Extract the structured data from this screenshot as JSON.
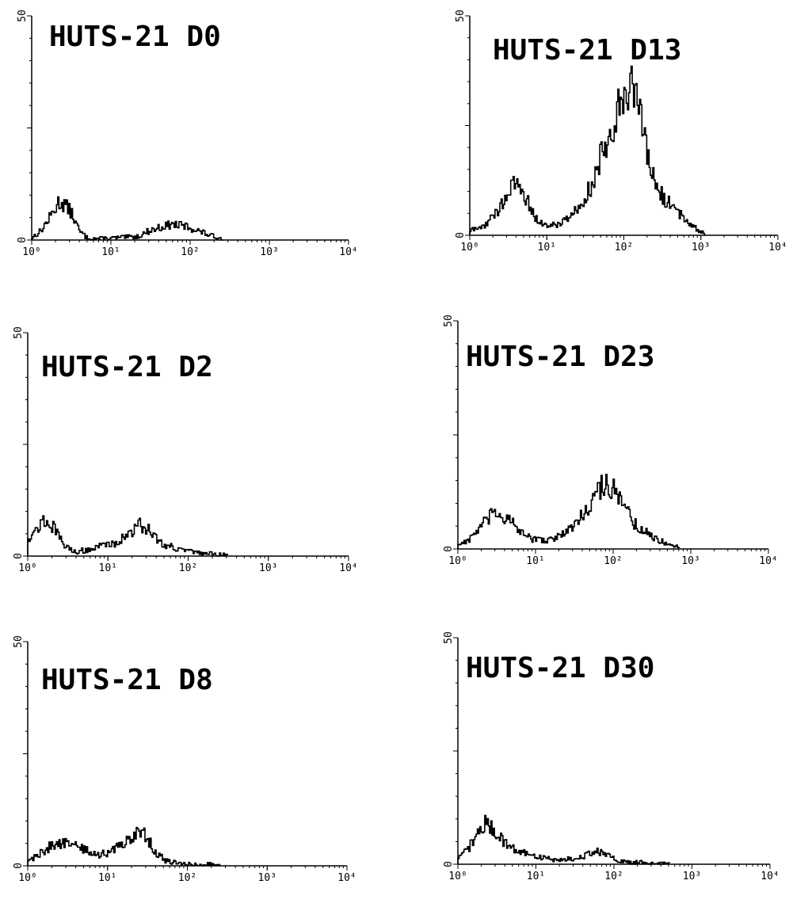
{
  "chart_data": [
    {
      "type": "line",
      "title": "HUTS-21 D0",
      "ylim": [
        0,
        50
      ],
      "y_tick_labels": [
        "0",
        "50"
      ],
      "x_scale": "log",
      "xlim": [
        1,
        10000
      ],
      "x_tick_labels": [
        "10⁰",
        "10¹",
        "10²",
        "10³",
        "10⁴"
      ],
      "grid": false,
      "peaks": [
        [
          1,
          0.5
        ],
        [
          1.3,
          2
        ],
        [
          1.7,
          5
        ],
        [
          2.2,
          8.5
        ],
        [
          2.6,
          8
        ],
        [
          3.2,
          6
        ],
        [
          4,
          2
        ],
        [
          5,
          0.5
        ],
        [
          7,
          0.3
        ],
        [
          10,
          0.4
        ],
        [
          15,
          0.6
        ],
        [
          22,
          0.8
        ],
        [
          30,
          2
        ],
        [
          45,
          3
        ],
        [
          60,
          3.5
        ],
        [
          90,
          3
        ],
        [
          130,
          2
        ],
        [
          180,
          1
        ],
        [
          250,
          0.3
        ]
      ]
    },
    {
      "type": "line",
      "title": "HUTS-21 D13",
      "ylim": [
        0,
        50
      ],
      "y_tick_labels": [
        "0",
        "50"
      ],
      "x_scale": "log",
      "xlim": [
        1,
        10000
      ],
      "x_tick_labels": [
        "10⁰",
        "10¹",
        "10²",
        "10³",
        "10⁴"
      ],
      "grid": false,
      "peaks": [
        [
          1,
          1
        ],
        [
          1.5,
          2
        ],
        [
          2.2,
          5
        ],
        [
          3,
          9
        ],
        [
          4,
          12
        ],
        [
          5,
          10
        ],
        [
          6.5,
          5
        ],
        [
          8,
          3
        ],
        [
          11,
          2
        ],
        [
          16,
          3
        ],
        [
          25,
          6
        ],
        [
          40,
          12
        ],
        [
          60,
          22
        ],
        [
          90,
          30
        ],
        [
          120,
          36
        ],
        [
          150,
          30
        ],
        [
          200,
          18
        ],
        [
          280,
          10
        ],
        [
          400,
          7
        ],
        [
          600,
          4
        ],
        [
          800,
          2
        ],
        [
          1100,
          0.5
        ]
      ]
    },
    {
      "type": "line",
      "title": "HUTS-21 D2",
      "ylim": [
        0,
        50
      ],
      "y_tick_labels": [
        "0",
        "50"
      ],
      "x_scale": "log",
      "xlim": [
        1,
        10000
      ],
      "x_tick_labels": [
        "10⁰",
        "10¹",
        "10²",
        "10³",
        "10⁴"
      ],
      "grid": false,
      "peaks": [
        [
          1,
          4
        ],
        [
          1.3,
          6
        ],
        [
          1.6,
          8
        ],
        [
          2,
          7
        ],
        [
          2.5,
          4
        ],
        [
          3,
          2
        ],
        [
          4,
          1
        ],
        [
          6,
          1.5
        ],
        [
          9,
          2.5
        ],
        [
          13,
          3
        ],
        [
          18,
          5
        ],
        [
          25,
          7
        ],
        [
          32,
          6
        ],
        [
          45,
          3
        ],
        [
          65,
          2
        ],
        [
          100,
          1
        ],
        [
          150,
          0.6
        ],
        [
          220,
          0.4
        ],
        [
          300,
          0.2
        ]
      ]
    },
    {
      "type": "line",
      "title": "HUTS-21 D23",
      "ylim": [
        0,
        50
      ],
      "y_tick_labels": [
        "0",
        "50"
      ],
      "x_scale": "log",
      "xlim": [
        1,
        10000
      ],
      "x_tick_labels": [
        "10⁰",
        "10¹",
        "10²",
        "10³",
        "10⁴"
      ],
      "grid": false,
      "peaks": [
        [
          1,
          1
        ],
        [
          1.4,
          2
        ],
        [
          2,
          5
        ],
        [
          3,
          8
        ],
        [
          4,
          7
        ],
        [
          5.5,
          5
        ],
        [
          7,
          3
        ],
        [
          10,
          2
        ],
        [
          15,
          2
        ],
        [
          22,
          3
        ],
        [
          35,
          6
        ],
        [
          55,
          11
        ],
        [
          80,
          15
        ],
        [
          100,
          13
        ],
        [
          140,
          9
        ],
        [
          200,
          5
        ],
        [
          300,
          3
        ],
        [
          450,
          1.5
        ],
        [
          700,
          0.5
        ]
      ]
    },
    {
      "type": "line",
      "title": "HUTS-21 D8",
      "ylim": [
        0,
        50
      ],
      "y_tick_labels": [
        "0",
        "50"
      ],
      "x_scale": "log",
      "xlim": [
        1,
        10000
      ],
      "x_tick_labels": [
        "10⁰",
        "10¹",
        "10²",
        "10³",
        "10⁴"
      ],
      "grid": false,
      "peaks": [
        [
          1,
          1
        ],
        [
          1.5,
          3
        ],
        [
          2.2,
          5
        ],
        [
          3,
          5
        ],
        [
          4,
          4.5
        ],
        [
          6,
          3
        ],
        [
          8,
          2.5
        ],
        [
          11,
          3
        ],
        [
          15,
          5
        ],
        [
          20,
          6
        ],
        [
          26,
          8
        ],
        [
          32,
          6
        ],
        [
          40,
          3
        ],
        [
          55,
          1
        ],
        [
          80,
          0.5
        ],
        [
          120,
          0.3
        ],
        [
          180,
          0.3
        ],
        [
          250,
          0.2
        ]
      ]
    },
    {
      "type": "line",
      "title": "HUTS-21 D30",
      "ylim": [
        0,
        50
      ],
      "y_tick_labels": [
        "0",
        "50"
      ],
      "x_scale": "log",
      "xlim": [
        1,
        10000
      ],
      "x_tick_labels": [
        "10⁰",
        "10¹",
        "10²",
        "10³",
        "10⁴"
      ],
      "grid": false,
      "peaks": [
        [
          1,
          1
        ],
        [
          1.3,
          3
        ],
        [
          1.7,
          6
        ],
        [
          2.2,
          9
        ],
        [
          2.7,
          8
        ],
        [
          3.5,
          6
        ],
        [
          4.5,
          4
        ],
        [
          6,
          3
        ],
        [
          8,
          2
        ],
        [
          12,
          1.5
        ],
        [
          18,
          1
        ],
        [
          30,
          1.2
        ],
        [
          45,
          2
        ],
        [
          60,
          3
        ],
        [
          80,
          2
        ],
        [
          110,
          0.8
        ],
        [
          160,
          0.3
        ],
        [
          250,
          0.4
        ],
        [
          350,
          0.2
        ],
        [
          500,
          0.1
        ]
      ]
    }
  ]
}
